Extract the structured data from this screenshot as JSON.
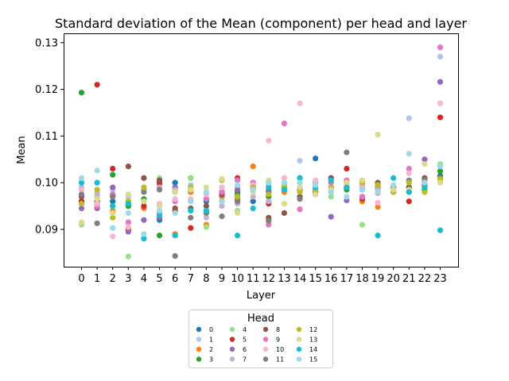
{
  "chart_data": {
    "type": "scatter",
    "title": "Standard deviation of the Mean (component) per head and layer",
    "xlabel": "Layer",
    "ylabel": "Mean",
    "x": [
      0,
      1,
      2,
      3,
      4,
      5,
      6,
      7,
      8,
      9,
      10,
      11,
      12,
      13,
      14,
      15,
      16,
      17,
      18,
      19,
      20,
      21,
      22,
      23
    ],
    "ylim": [
      0.082,
      0.132
    ],
    "yticks": [
      0.09,
      0.1,
      0.11,
      0.12,
      0.13
    ],
    "ytick_labels": [
      "0.09",
      "0.10",
      "0.11",
      "0.12",
      "0.13"
    ],
    "grid": false,
    "legend": {
      "title": "Head",
      "position": "bottom-center",
      "columns": 4
    },
    "series": [
      {
        "name": "0",
        "color": "#1f77b4",
        "values": [
          0.096,
          0.0955,
          0.096,
          0.095,
          0.096,
          0.092,
          0.1,
          0.098,
          0.096,
          0.097,
          0.098,
          0.096,
          0.098,
          0.099,
          0.099,
          0.1052,
          0.098,
          0.099,
          0.099,
          0.0985,
          0.099,
          0.099,
          0.1,
          0.1015
        ]
      },
      {
        "name": "1",
        "color": "#aec7e8",
        "values": [
          0.0975,
          0.098,
          0.0985,
          0.097,
          0.0985,
          0.099,
          0.099,
          0.0995,
          0.0975,
          0.098,
          0.099,
          0.099,
          0.0995,
          0.1,
          0.1047,
          0.099,
          0.0985,
          0.0995,
          0.0985,
          0.099,
          0.099,
          0.1138,
          0.099,
          0.127
        ]
      },
      {
        "name": "2",
        "color": "#ff7f0e",
        "values": [
          0.096,
          0.095,
          0.094,
          0.096,
          0.0945,
          0.0995,
          0.089,
          0.098,
          0.091,
          0.097,
          0.096,
          0.1035,
          0.092,
          0.098,
          0.099,
          0.098,
          0.099,
          0.099,
          0.096,
          0.0948,
          0.098,
          0.099,
          0.0985,
          0.101
        ]
      },
      {
        "name": "3",
        "color": "#2ca02c",
        "values": [
          0.1193,
          0.096,
          0.1017,
          0.095,
          0.0965,
          0.0887,
          0.098,
          0.101,
          0.094,
          0.098,
          0.0975,
          0.099,
          0.097,
          0.0995,
          0.101,
          0.0985,
          0.099,
          0.0985,
          0.1,
          0.0995,
          0.098,
          0.098,
          0.0985,
          0.1025
        ]
      },
      {
        "name": "4",
        "color": "#98df8a",
        "values": [
          0.091,
          0.097,
          0.095,
          0.0842,
          0.0985,
          0.101,
          0.098,
          0.101,
          0.0905,
          0.099,
          0.094,
          0.099,
          0.096,
          0.0995,
          0.1,
          0.099,
          0.097,
          0.099,
          0.091,
          0.099,
          0.098,
          0.099,
          0.099,
          0.104
        ]
      },
      {
        "name": "5",
        "color": "#d62728",
        "values": [
          0.096,
          0.121,
          0.103,
          0.09,
          0.095,
          0.1,
          0.094,
          0.0903,
          0.0965,
          0.0975,
          0.101,
          0.1,
          0.0955,
          0.099,
          0.0985,
          0.0975,
          0.101,
          0.103,
          0.097,
          0.099,
          0.099,
          0.096,
          0.0995,
          0.114
        ]
      },
      {
        "name": "6",
        "color": "#9467bd",
        "values": [
          0.0945,
          0.0945,
          0.099,
          0.0895,
          0.092,
          0.0925,
          0.099,
          0.0985,
          0.0935,
          0.098,
          0.0985,
          0.0995,
          0.0985,
          0.0985,
          0.0985,
          0.098,
          0.0927,
          0.0962,
          0.099,
          0.099,
          0.099,
          0.099,
          0.105,
          0.1216
        ]
      },
      {
        "name": "7",
        "color": "#c5b0d5",
        "values": [
          0.099,
          0.0975,
          0.097,
          0.0915,
          0.0985,
          0.099,
          0.0985,
          0.0985,
          0.0925,
          0.095,
          0.0955,
          0.097,
          0.096,
          0.101,
          0.098,
          0.1,
          0.099,
          0.0995,
          0.0995,
          0.0985,
          0.098,
          0.099,
          0.101,
          0.1005
        ]
      },
      {
        "name": "8",
        "color": "#8c564b",
        "values": [
          0.097,
          0.096,
          0.0975,
          0.1035,
          0.101,
          0.1005,
          0.0945,
          0.0945,
          0.095,
          0.0975,
          0.0965,
          0.0985,
          0.0925,
          0.0935,
          0.097,
          0.098,
          0.101,
          0.099,
          0.0965,
          0.1,
          0.099,
          0.099,
          0.101,
          0.101
        ]
      },
      {
        "name": "9",
        "color": "#e377c2",
        "values": [
          0.0985,
          0.095,
          0.0975,
          0.0915,
          0.099,
          0.0935,
          0.096,
          0.096,
          0.0965,
          0.098,
          0.1005,
          0.1,
          0.091,
          0.1127,
          0.0943,
          0.1,
          0.1,
          0.1005,
          0.097,
          0.0978,
          0.098,
          0.103,
          0.1,
          0.129
        ]
      },
      {
        "name": "10",
        "color": "#f7b6d2",
        "values": [
          0.0985,
          0.0955,
          0.0885,
          0.0905,
          0.098,
          0.0955,
          0.0965,
          0.0965,
          0.0975,
          0.099,
          0.096,
          0.0995,
          0.109,
          0.101,
          0.117,
          0.1005,
          0.099,
          0.0995,
          0.099,
          0.0957,
          0.0985,
          0.102,
          0.1,
          0.117
        ]
      },
      {
        "name": "11",
        "color": "#7f7f7f",
        "values": [
          0.0975,
          0.0913,
          0.097,
          0.0955,
          0.098,
          0.0985,
          0.0843,
          0.0925,
          0.0935,
          0.0928,
          0.096,
          0.099,
          0.0918,
          0.099,
          0.0965,
          0.098,
          0.099,
          0.1065,
          0.0985,
          0.0995,
          0.099,
          0.1005,
          0.1005,
          0.101
        ]
      },
      {
        "name": "12",
        "color": "#bcbd22",
        "values": [
          0.0955,
          0.0985,
          0.0925,
          0.096,
          0.099,
          0.095,
          0.098,
          0.099,
          0.094,
          0.1005,
          0.097,
          0.099,
          0.0975,
          0.099,
          0.098,
          0.0985,
          0.099,
          0.1,
          0.1,
          0.0995,
          0.098,
          0.1,
          0.098,
          0.1008
        ]
      },
      {
        "name": "13",
        "color": "#dbdb8d",
        "values": [
          0.0915,
          0.0965,
          0.0935,
          0.0975,
          0.096,
          0.095,
          0.098,
          0.0985,
          0.099,
          0.1008,
          0.0935,
          0.098,
          0.1005,
          0.0955,
          0.099,
          0.0975,
          0.0985,
          0.1,
          0.1005,
          0.1103,
          0.0985,
          0.0985,
          0.104,
          0.1
        ]
      },
      {
        "name": "14",
        "color": "#17becf",
        "values": [
          0.1,
          0.1,
          0.095,
          0.0955,
          0.088,
          0.093,
          0.0887,
          0.094,
          0.094,
          0.096,
          0.0887,
          0.0945,
          0.099,
          0.0985,
          0.101,
          0.099,
          0.1005,
          0.099,
          0.0985,
          0.0887,
          0.101,
          0.098,
          0.099,
          0.0898
        ]
      },
      {
        "name": "15",
        "color": "#9edae5",
        "values": [
          0.101,
          0.1026,
          0.0903,
          0.0935,
          0.089,
          0.094,
          0.0935,
          0.096,
          0.098,
          0.096,
          0.0995,
          0.0985,
          0.1,
          0.1,
          0.1,
          0.0995,
          0.098,
          0.097,
          0.0985,
          0.098,
          0.0995,
          0.1062,
          0.1,
          0.1035
        ]
      }
    ]
  }
}
